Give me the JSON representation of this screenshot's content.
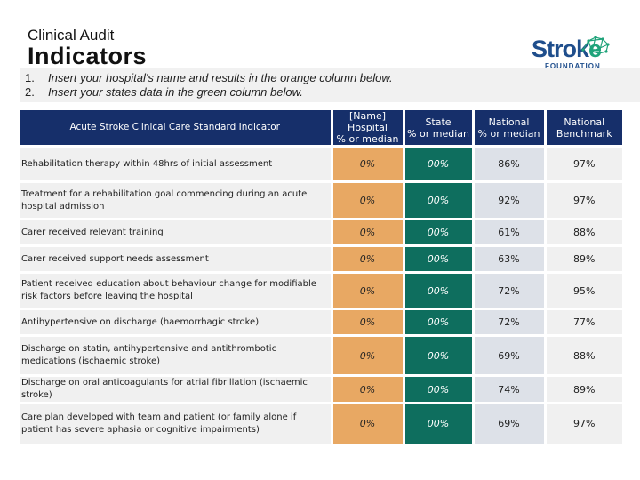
{
  "header": {
    "subtitle": "Clinical Audit",
    "title": "Indicators"
  },
  "logo": {
    "word_main": "Strok",
    "word_accent": "e",
    "sub": "FOUNDATION"
  },
  "instructions": [
    {
      "num": "1.",
      "text": "Insert your hospital's name and results in the orange column below."
    },
    {
      "num": "2.",
      "text": "Insert your states data in the green column below."
    }
  ],
  "table": {
    "headers": {
      "indicator": "Acute Stroke Clinical Care Standard Indicator",
      "hospital_line1": "[Name] Hospital",
      "hospital_line2": "% or median",
      "state_line1": "State",
      "state_line2": "% or median",
      "national_line1": "National",
      "national_line2": "% or median",
      "benchmark_line1": "National",
      "benchmark_line2": "Benchmark"
    },
    "rows": [
      {
        "indicator": "Rehabilitation therapy within 48hrs of initial assessment",
        "hospital": "0%",
        "state": "00%",
        "national": "86%",
        "benchmark": "97%"
      },
      {
        "indicator": "Treatment for a rehabilitation goal commencing during an acute hospital admission",
        "hospital": "0%",
        "state": "00%",
        "national": "92%",
        "benchmark": "97%"
      },
      {
        "indicator": "Carer received relevant training",
        "hospital": "0%",
        "state": "00%",
        "national": "61%",
        "benchmark": "88%"
      },
      {
        "indicator": "Carer received support needs assessment",
        "hospital": "0%",
        "state": "00%",
        "national": "63%",
        "benchmark": "89%"
      },
      {
        "indicator": "Patient received education about behaviour change for modifiable risk factors before leaving the hospital",
        "hospital": "0%",
        "state": "00%",
        "national": "72%",
        "benchmark": "95%"
      },
      {
        "indicator": "Antihypertensive on discharge (haemorrhagic stroke)",
        "hospital": "0%",
        "state": "00%",
        "national": "72%",
        "benchmark": "77%"
      },
      {
        "indicator": "Discharge on statin, antihypertensive and antithrombotic medications (ischaemic stroke)",
        "hospital": "0%",
        "state": "00%",
        "national": "69%",
        "benchmark": "88%"
      },
      {
        "indicator": "Discharge on oral anticoagulants for atrial fibrillation (ischaemic stroke)",
        "hospital": "0%",
        "state": "00%",
        "national": "74%",
        "benchmark": "89%"
      },
      {
        "indicator": "Care plan developed with team and patient (or family alone if patient has severe aphasia or cognitive impairments)",
        "hospital": "0%",
        "state": "00%",
        "national": "69%",
        "benchmark": "97%"
      }
    ]
  },
  "colors": {
    "header_bg": "#162f6a",
    "hospital": "#e8a863",
    "state": "#0e6e5e",
    "national": "#dde1e8"
  }
}
